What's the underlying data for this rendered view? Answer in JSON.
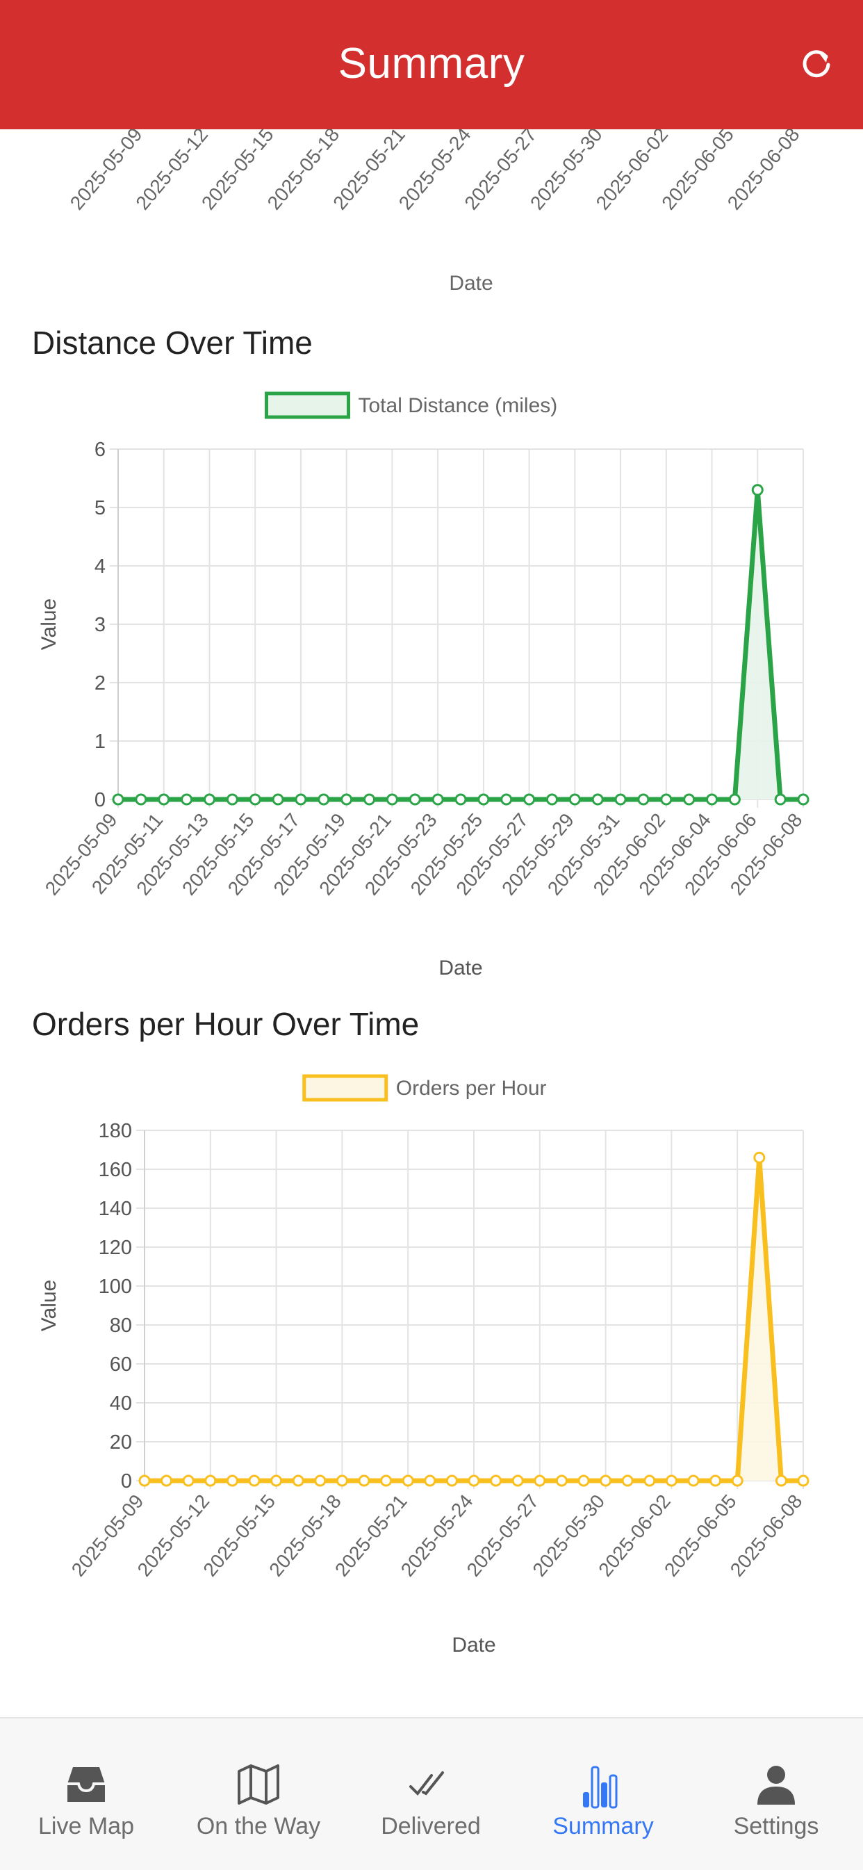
{
  "header": {
    "title": "Summary",
    "refresh_icon": "refresh-icon"
  },
  "top_chart_fragment": {
    "x_ticks": [
      "2025-05-09",
      "2025-05-12",
      "2025-05-15",
      "2025-05-18",
      "2025-05-21",
      "2025-05-24",
      "2025-05-27",
      "2025-05-30",
      "2025-06-02",
      "2025-06-05",
      "2025-06-08"
    ],
    "xlabel": "Date"
  },
  "sections": {
    "distance": {
      "title": "Distance Over Time"
    },
    "orders": {
      "title": "Orders per Hour Over Time"
    }
  },
  "chart_data": [
    {
      "type": "line",
      "x": [
        "2025-05-09",
        "2025-05-10",
        "2025-05-11",
        "2025-05-12",
        "2025-05-13",
        "2025-05-14",
        "2025-05-15",
        "2025-05-16",
        "2025-05-17",
        "2025-05-18",
        "2025-05-19",
        "2025-05-20",
        "2025-05-21",
        "2025-05-22",
        "2025-05-23",
        "2025-05-24",
        "2025-05-25",
        "2025-05-26",
        "2025-05-27",
        "2025-05-28",
        "2025-05-29",
        "2025-05-30",
        "2025-05-31",
        "2025-06-01",
        "2025-06-02",
        "2025-06-03",
        "2025-06-04",
        "2025-06-05",
        "2025-06-06",
        "2025-06-07",
        "2025-06-08"
      ],
      "series": [
        {
          "name": "Total Distance (miles)",
          "values": [
            0,
            0,
            0,
            0,
            0,
            0,
            0,
            0,
            0,
            0,
            0,
            0,
            0,
            0,
            0,
            0,
            0,
            0,
            0,
            0,
            0,
            0,
            0,
            0,
            0,
            0,
            0,
            0,
            5.3,
            0,
            0
          ],
          "color": "#2aa447"
        }
      ],
      "x_ticks": [
        "2025-05-09",
        "2025-05-11",
        "2025-05-13",
        "2025-05-15",
        "2025-05-17",
        "2025-05-19",
        "2025-05-21",
        "2025-05-23",
        "2025-05-25",
        "2025-05-27",
        "2025-05-29",
        "2025-05-31",
        "2025-06-02",
        "2025-06-04",
        "2025-06-06",
        "2025-06-08"
      ],
      "y_ticks": [
        "0",
        "1",
        "2",
        "3",
        "4",
        "5",
        "6"
      ],
      "ylim": [
        0,
        6
      ],
      "xlabel": "Date",
      "ylabel": "Value",
      "grid": true,
      "legend": "top-center",
      "fill": "#e7f4ea"
    },
    {
      "type": "line",
      "x": [
        "2025-05-09",
        "2025-05-10",
        "2025-05-11",
        "2025-05-12",
        "2025-05-13",
        "2025-05-14",
        "2025-05-15",
        "2025-05-16",
        "2025-05-17",
        "2025-05-18",
        "2025-05-19",
        "2025-05-20",
        "2025-05-21",
        "2025-05-22",
        "2025-05-23",
        "2025-05-24",
        "2025-05-25",
        "2025-05-26",
        "2025-05-27",
        "2025-05-28",
        "2025-05-29",
        "2025-05-30",
        "2025-05-31",
        "2025-06-01",
        "2025-06-02",
        "2025-06-03",
        "2025-06-04",
        "2025-06-05",
        "2025-06-06",
        "2025-06-07",
        "2025-06-08"
      ],
      "series": [
        {
          "name": "Orders per Hour",
          "values": [
            0,
            0,
            0,
            0,
            0,
            0,
            0,
            0,
            0,
            0,
            0,
            0,
            0,
            0,
            0,
            0,
            0,
            0,
            0,
            0,
            0,
            0,
            0,
            0,
            0,
            0,
            0,
            0,
            166,
            0,
            0
          ],
          "color": "#f9bf1e"
        }
      ],
      "x_ticks": [
        "2025-05-09",
        "2025-05-12",
        "2025-05-15",
        "2025-05-18",
        "2025-05-21",
        "2025-05-24",
        "2025-05-27",
        "2025-05-30",
        "2025-06-02",
        "2025-06-05",
        "2025-06-08"
      ],
      "y_ticks": [
        "0",
        "20",
        "40",
        "60",
        "80",
        "100",
        "120",
        "140",
        "160",
        "180"
      ],
      "ylim": [
        0,
        180
      ],
      "xlabel": "Date",
      "ylabel": "Value",
      "grid": true,
      "legend": "top-center",
      "fill": "#fdf6e3"
    }
  ],
  "tabs": [
    {
      "label": "Live Map",
      "icon": "inbox-tray-icon",
      "active": false
    },
    {
      "label": "On the Way",
      "icon": "map-icon",
      "active": false
    },
    {
      "label": "Delivered",
      "icon": "double-check-icon",
      "active": false
    },
    {
      "label": "Summary",
      "icon": "bar-chart-icon",
      "active": true
    },
    {
      "label": "Settings",
      "icon": "person-icon",
      "active": false
    }
  ],
  "colors": {
    "header": "#d32f2f",
    "active_tab": "#3478f6",
    "inactive_tab": "#6d6d6d"
  }
}
